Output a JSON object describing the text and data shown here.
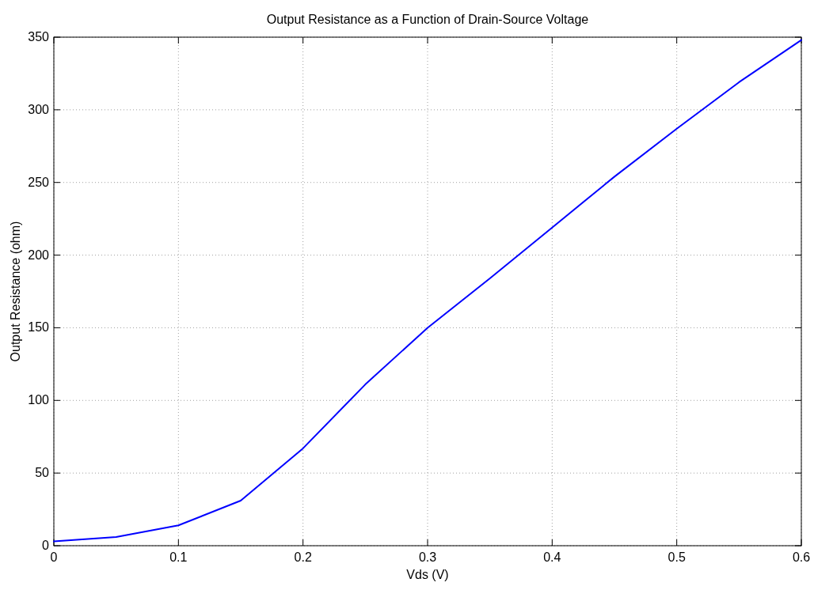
{
  "chart_data": {
    "type": "line",
    "title": "Output Resistance as a Function of Drain-Source Voltage",
    "xlabel": "Vds (V)",
    "ylabel": "Output Resistance (ohm)",
    "x": [
      0,
      0.05,
      0.1,
      0.15,
      0.2,
      0.25,
      0.3,
      0.35,
      0.4,
      0.45,
      0.5,
      0.55,
      0.6
    ],
    "series": [
      {
        "color": "#0000ff",
        "values": [
          3,
          6,
          14,
          31,
          67,
          111,
          150,
          184,
          219,
          254,
          287,
          319,
          348
        ]
      }
    ],
    "xlim": [
      0,
      0.6
    ],
    "xticks": [
      0,
      0.1,
      0.2,
      0.3,
      0.4,
      0.5,
      0.6
    ],
    "ylim": [
      0,
      350
    ],
    "yticks": [
      0,
      50,
      100,
      150,
      200,
      250,
      300,
      350
    ],
    "grid": true,
    "marker": "none",
    "line_style": "solid"
  }
}
